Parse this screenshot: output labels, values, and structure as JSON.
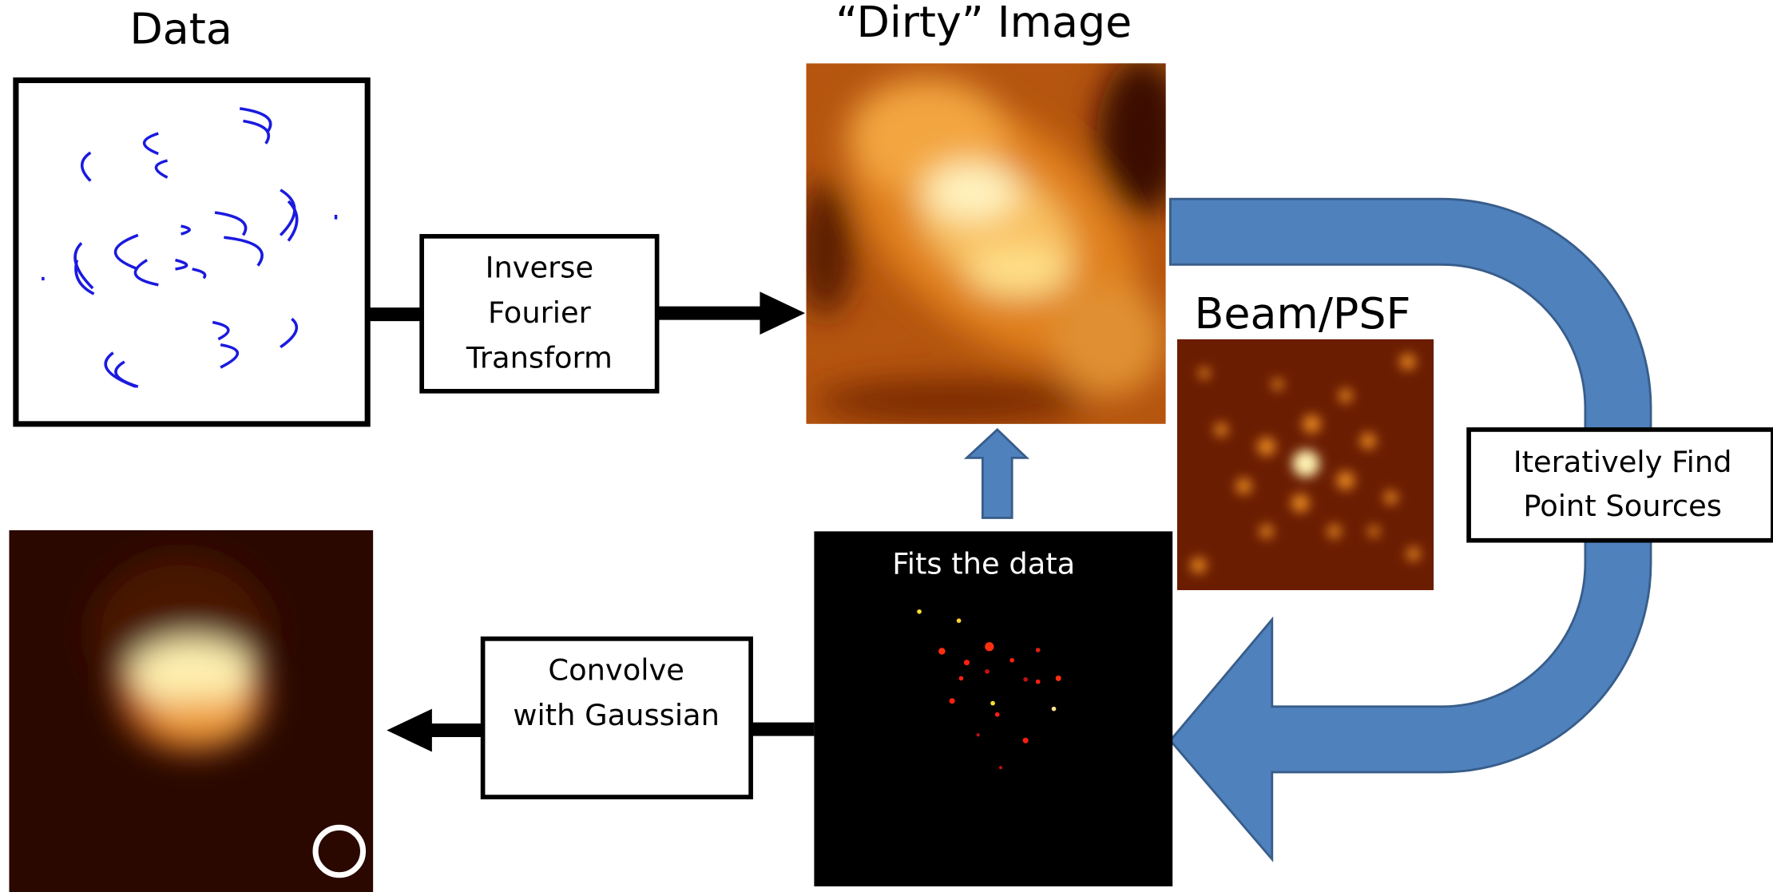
{
  "panels": {
    "data": {
      "title": "Data"
    },
    "dirty_image": {
      "title": "“Dirty” Image"
    },
    "beam": {
      "title": "Beam/PSF"
    },
    "model": {
      "caption": "Fits the data"
    }
  },
  "steps": [
    {
      "lines": [
        "Inverse",
        "Fourier",
        "Transform"
      ]
    },
    {
      "lines": [
        "Iteratively Find",
        "Point Sources"
      ]
    },
    {
      "lines": [
        "Convolve",
        "with Gaussian"
      ]
    }
  ]
}
